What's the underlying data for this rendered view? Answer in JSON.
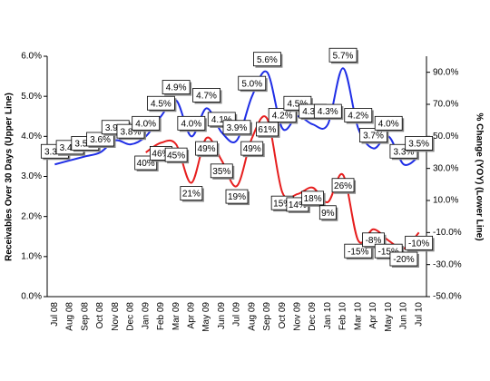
{
  "chart_data": {
    "type": "line",
    "y_label": "Receivables Over 30 Days (Upper Line)",
    "y2_label": "% Change (YOY) (Lower Line)",
    "categories": [
      "Jul 08",
      "Aug 08",
      "Sep 08",
      "Oct 08",
      "Nov 08",
      "Dec 08",
      "Jan 09",
      "Feb 09",
      "Mar 09",
      "Apr 09",
      "May 09",
      "Jun 09",
      "Jul 09",
      "Aug 09",
      "Sep 09",
      "Oct 09",
      "Nov 09",
      "Dec 09",
      "Jan 10",
      "Feb 10",
      "Mar 10",
      "Apr 10",
      "May 10",
      "Jun 10",
      "Jul 10"
    ],
    "series": [
      {
        "color": "#1f2ee6",
        "values": [
          3.3,
          3.4,
          3.5,
          3.6,
          3.9,
          3.8,
          4.0,
          4.5,
          4.9,
          4.0,
          4.7,
          4.1,
          3.9,
          5.0,
          5.6,
          4.2,
          4.5,
          4.3,
          4.3,
          5.7,
          4.2,
          3.7,
          4.0,
          3.3,
          3.5
        ],
        "value_labels": [
          "3.3%",
          "3.4%",
          "3.5%",
          "3.6%",
          "3.9%",
          "3.8%",
          "4.0%",
          "4.5%",
          "4.9%",
          "4.0%",
          "4.7%",
          "4.1%",
          "3.9%",
          "5.0%",
          "5.6%",
          "4.2%",
          "4.5%",
          "4.3%",
          "4.3%",
          "5.7%",
          "4.2%",
          "3.7%",
          "4.0%",
          "3.3%",
          "3.5%"
        ]
      },
      {
        "color": "#e61e1e",
        "axis": "y2",
        "values": [
          null,
          null,
          null,
          null,
          null,
          null,
          40,
          46,
          45,
          21,
          49,
          35,
          19,
          49,
          61,
          15,
          14,
          18,
          9,
          26,
          -15,
          -8,
          -15,
          -20,
          -10
        ],
        "value_labels": [
          null,
          null,
          null,
          null,
          null,
          null,
          "40%",
          "46%",
          "45%",
          "21%",
          "49%",
          "35%",
          "19%",
          "49%",
          "61%",
          "15%",
          "14%",
          "18%",
          "9%",
          "26%",
          "-15%",
          "-8%",
          "-15%",
          "-20%",
          "-10%"
        ]
      }
    ],
    "ylim": [
      0,
      6.0
    ],
    "yticks": [
      {
        "value": 0,
        "label": "0.0%"
      },
      {
        "value": 1,
        "label": "1.0%"
      },
      {
        "value": 2,
        "label": "2.0%"
      },
      {
        "value": 3,
        "label": "3.0%"
      },
      {
        "value": 4,
        "label": "4.0%"
      },
      {
        "value": 5,
        "label": "5.0%"
      },
      {
        "value": 6,
        "label": "6.0%"
      }
    ],
    "y2lim": [
      -50,
      100
    ],
    "y2ticks": [
      {
        "value": -50,
        "label": "-50.0%"
      },
      {
        "value": -30,
        "label": "-30.0%"
      },
      {
        "value": -10,
        "label": "-10.0%"
      },
      {
        "value": 10,
        "label": "10.0%"
      },
      {
        "value": 30,
        "label": "30.0%"
      },
      {
        "value": 50,
        "label": "50.0%"
      },
      {
        "value": 70,
        "label": "70.0%"
      },
      {
        "value": 90,
        "label": "90.0%"
      }
    ]
  }
}
